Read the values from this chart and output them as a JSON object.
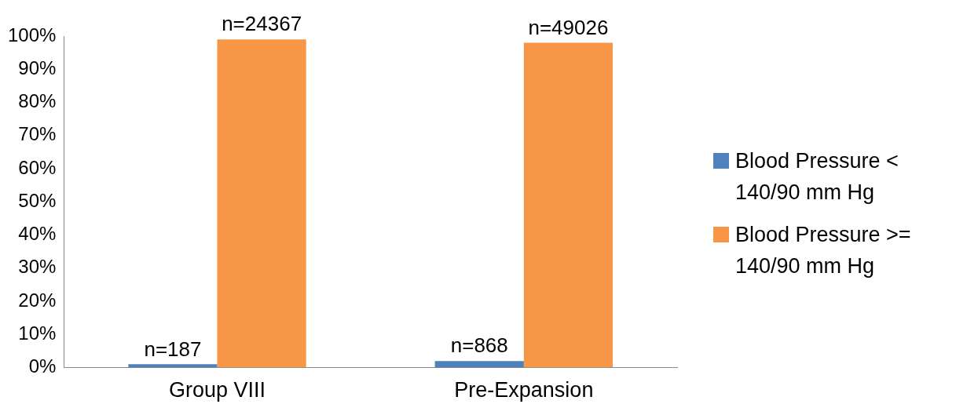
{
  "chart_data": {
    "type": "bar",
    "categories": [
      "Group VIII",
      "Pre-Expansion"
    ],
    "series": [
      {
        "name": "Blood Pressure < 140/90 mm Hg",
        "color": "#4f81bd",
        "values": [
          1,
          2
        ]
      },
      {
        "name": "Blood Pressure >= 140/90 mm Hg",
        "color": "#f79646",
        "values": [
          99,
          98
        ]
      }
    ],
    "annotations": [
      {
        "text": "n=187",
        "x": "Group VIII",
        "y": 1
      },
      {
        "text": "n=24367",
        "x": "Group VIII",
        "y": 99
      },
      {
        "text": "n=868",
        "x": "Pre-Expansion",
        "y": 2
      },
      {
        "text": "n=49026",
        "x": "Pre-Expansion",
        "y": 98
      }
    ],
    "ylim": [
      0,
      100
    ],
    "yticks": [
      {
        "value": 0,
        "label": "0%"
      },
      {
        "value": 10,
        "label": "10%"
      },
      {
        "value": 20,
        "label": "20%"
      },
      {
        "value": 30,
        "label": "30%"
      },
      {
        "value": 40,
        "label": "40%"
      },
      {
        "value": 50,
        "label": "50%"
      },
      {
        "value": 60,
        "label": "60%"
      },
      {
        "value": 70,
        "label": "70%"
      },
      {
        "value": 80,
        "label": "80%"
      },
      {
        "value": 90,
        "label": "90%"
      },
      {
        "value": 100,
        "label": "100%"
      }
    ],
    "grid": false,
    "legend": "right"
  }
}
